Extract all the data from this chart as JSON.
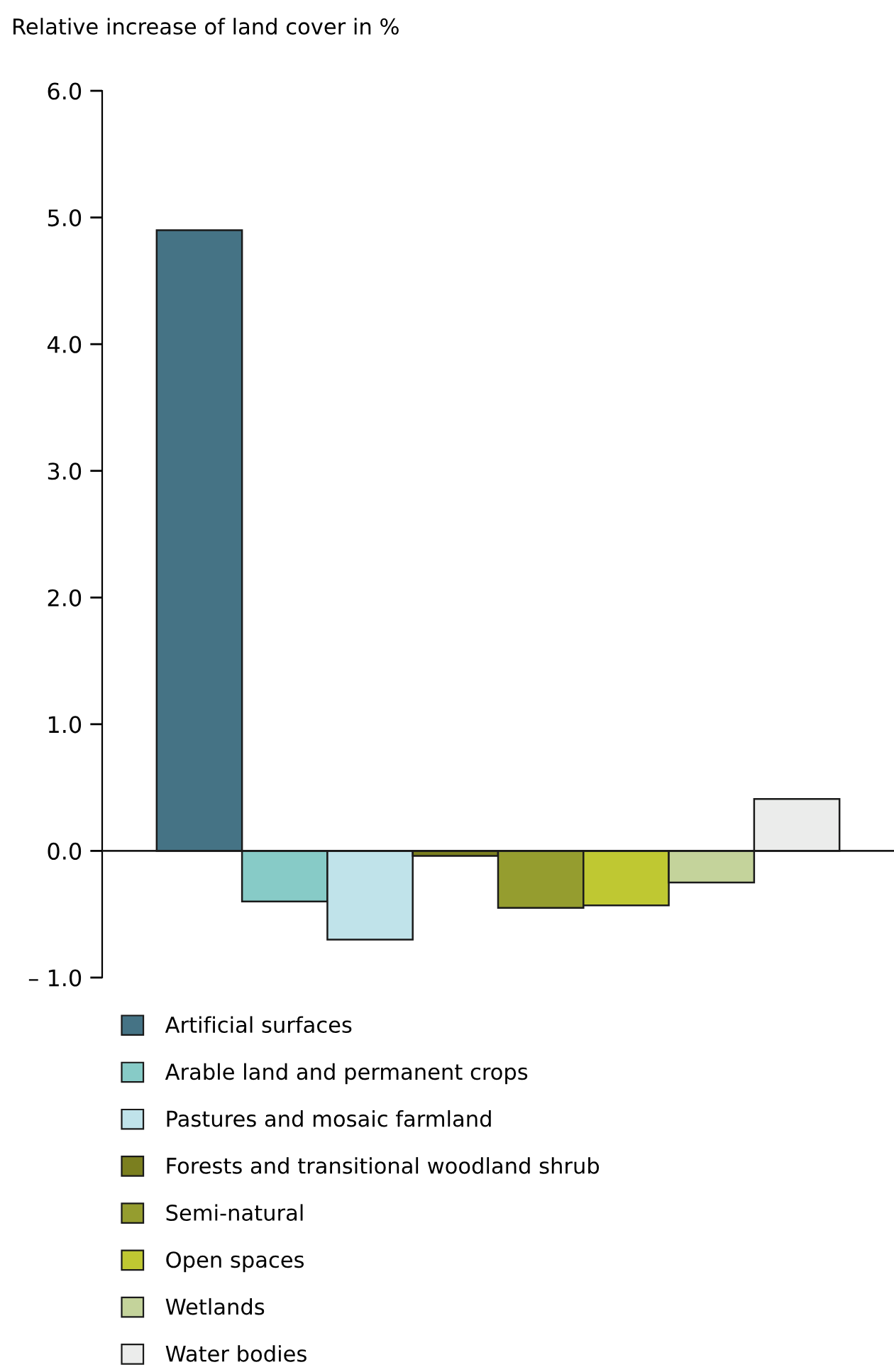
{
  "chart_data": {
    "type": "bar",
    "ylabel": "Relative increase of land cover in %",
    "categories": [
      null,
      null,
      null,
      null,
      null,
      null,
      null,
      null
    ],
    "series": [
      {
        "name": "Artificial surfaces",
        "color": "#457385",
        "values": [
          4.9,
          null,
          null,
          null,
          null,
          null,
          null,
          null
        ]
      },
      {
        "name": "Arable land and permanent crops",
        "color": "#87cbc7",
        "values": [
          null,
          -0.4,
          null,
          null,
          null,
          null,
          null,
          null
        ]
      },
      {
        "name": "Pastures and mosaic farmland",
        "color": "#c0e3ea",
        "values": [
          null,
          null,
          -0.7,
          null,
          null,
          null,
          null,
          null
        ]
      },
      {
        "name": "Forests and transitional woodland shrub",
        "color": "#7b7f1f",
        "values": [
          null,
          null,
          null,
          -0.04,
          null,
          null,
          null,
          null
        ]
      },
      {
        "name": "Semi-natural",
        "color": "#959d2f",
        "values": [
          null,
          null,
          null,
          null,
          -0.45,
          null,
          null,
          null
        ]
      },
      {
        "name": "Open spaces",
        "color": "#bfc832",
        "values": [
          null,
          null,
          null,
          null,
          null,
          -0.43,
          null,
          null
        ]
      },
      {
        "name": "Wetlands",
        "color": "#c4d39b",
        "values": [
          null,
          null,
          null,
          null,
          null,
          null,
          -0.25,
          null
        ]
      },
      {
        "name": "Water bodies",
        "color": "#ebeceb",
        "values": [
          null,
          null,
          null,
          null,
          null,
          null,
          null,
          0.41
        ]
      }
    ],
    "ylim": [
      -1,
      6
    ],
    "yticks": [
      {
        "value": -1,
        "label": "– 1.0"
      },
      {
        "value": 0,
        "label": "0.0"
      },
      {
        "value": 1,
        "label": "1.0"
      },
      {
        "value": 2,
        "label": "2.0"
      },
      {
        "value": 3,
        "label": "3.0"
      },
      {
        "value": 4,
        "label": "4.0"
      },
      {
        "value": 5,
        "label": "5.0"
      },
      {
        "value": 6,
        "label": "6.0"
      }
    ],
    "ref_lines": [
      {
        "axis": "y",
        "value": 0,
        "color": "#1a1a1a"
      }
    ],
    "grid": false,
    "legend": "bottom"
  }
}
